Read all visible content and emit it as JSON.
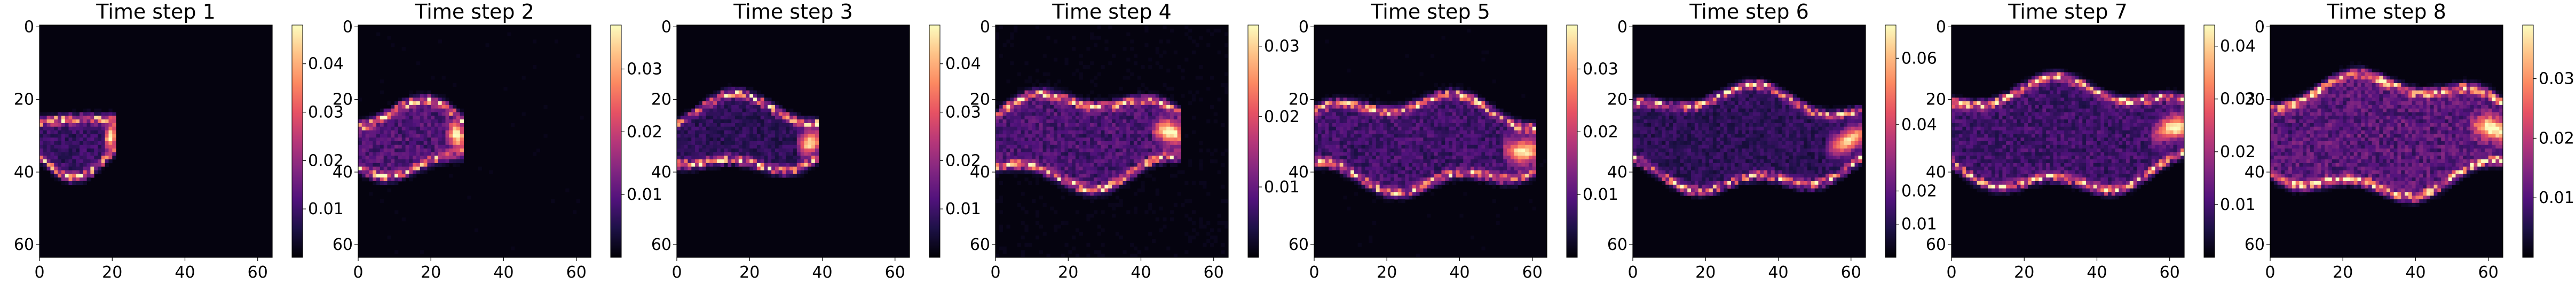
{
  "colormap": {
    "name": "magma",
    "stops": [
      "#000004",
      "#1d1147",
      "#51127c",
      "#822681",
      "#b73779",
      "#e75263",
      "#fc8961",
      "#fec287",
      "#fcfdbf"
    ]
  },
  "chart_data": [
    {
      "type": "heatmap",
      "title": "Time step 1",
      "xticks": [
        0,
        20,
        40,
        60
      ],
      "yticks": [
        0,
        20,
        40,
        60
      ],
      "extent": [
        0,
        64
      ],
      "colorbar": {
        "min": 0,
        "max": 0.048,
        "ticks": [
          0.01,
          0.02,
          0.03,
          0.04
        ]
      },
      "plume": {
        "length": 20,
        "center_y": 31,
        "width": 14,
        "edge_peak": 0.048,
        "interior": 0.012
      }
    },
    {
      "type": "heatmap",
      "title": "Time step 2",
      "xticks": [
        0,
        20,
        40,
        60
      ],
      "yticks": [
        0,
        20,
        40,
        60
      ],
      "extent": [
        0,
        64
      ],
      "colorbar": {
        "min": 0,
        "max": 0.037,
        "ticks": [
          0.01,
          0.02,
          0.03
        ]
      },
      "plume": {
        "length": 28,
        "center_y": 31,
        "width": 16,
        "edge_peak": 0.037,
        "interior": 0.012
      }
    },
    {
      "type": "heatmap",
      "title": "Time step 3",
      "xticks": [
        0,
        20,
        40,
        60
      ],
      "yticks": [
        0,
        20,
        40,
        60
      ],
      "extent": [
        0,
        64
      ],
      "colorbar": {
        "min": 0,
        "max": 0.048,
        "ticks": [
          0.01,
          0.02,
          0.03,
          0.04
        ]
      },
      "plume": {
        "length": 38,
        "center_y": 30,
        "width": 16,
        "edge_peak": 0.048,
        "interior": 0.01
      }
    },
    {
      "type": "heatmap",
      "title": "Time step 4",
      "xticks": [
        0,
        20,
        40,
        60
      ],
      "yticks": [
        0,
        20,
        40,
        60
      ],
      "extent": [
        0,
        64
      ],
      "colorbar": {
        "min": 0,
        "max": 0.033,
        "ticks": [
          0.01,
          0.02,
          0.03
        ]
      },
      "plume": {
        "length": 50,
        "center_y": 31,
        "width": 20,
        "edge_peak": 0.033,
        "interior": 0.01
      }
    },
    {
      "type": "heatmap",
      "title": "Time step 5",
      "xticks": [
        0,
        20,
        40,
        60
      ],
      "yticks": [
        0,
        20,
        40,
        60
      ],
      "extent": [
        0,
        64
      ],
      "colorbar": {
        "min": 0,
        "max": 0.037,
        "ticks": [
          0.01,
          0.02,
          0.03
        ]
      },
      "plume": {
        "length": 60,
        "center_y": 32,
        "width": 20,
        "edge_peak": 0.037,
        "interior": 0.01
      }
    },
    {
      "type": "heatmap",
      "title": "Time step 6",
      "xticks": [
        0,
        20,
        40,
        60
      ],
      "yticks": [
        0,
        20,
        40,
        60
      ],
      "extent": [
        0,
        64
      ],
      "colorbar": {
        "min": 0,
        "max": 0.07,
        "ticks": [
          0.01,
          0.02,
          0.04,
          0.06
        ]
      },
      "plume": {
        "length": 62,
        "center_y": 31,
        "width": 22,
        "edge_peak": 0.07,
        "interior": 0.015
      }
    },
    {
      "type": "heatmap",
      "title": "Time step 7",
      "xticks": [
        0,
        20,
        40,
        60
      ],
      "yticks": [
        0,
        20,
        40,
        60
      ],
      "extent": [
        0,
        64
      ],
      "colorbar": {
        "min": 0,
        "max": 0.044,
        "ticks": [
          0.01,
          0.02,
          0.03,
          0.04
        ]
      },
      "plume": {
        "length": 64,
        "center_y": 30,
        "width": 24,
        "edge_peak": 0.044,
        "interior": 0.012
      }
    },
    {
      "type": "heatmap",
      "title": "Time step 8",
      "xticks": [
        0,
        20,
        40,
        60
      ],
      "yticks": [
        0,
        20,
        40,
        60
      ],
      "extent": [
        0,
        64
      ],
      "colorbar": {
        "min": 0,
        "max": 0.039,
        "ticks": [
          0.01,
          0.02,
          0.03
        ]
      },
      "plume": {
        "length": 64,
        "center_y": 30,
        "width": 26,
        "edge_peak": 0.039,
        "interior": 0.014
      }
    }
  ]
}
